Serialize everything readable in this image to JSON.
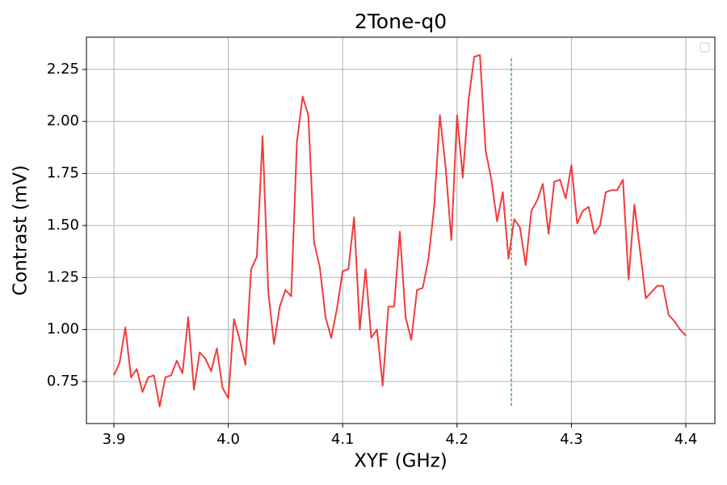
{
  "chart_data": {
    "type": "line",
    "title": "2Tone-q0",
    "xlabel": "XYF (GHz)",
    "ylabel": "Contrast (mV)",
    "x": [
      3.9,
      3.905,
      3.91,
      3.915,
      3.92,
      3.925,
      3.93,
      3.935,
      3.94,
      3.945,
      3.95,
      3.955,
      3.96,
      3.965,
      3.97,
      3.975,
      3.98,
      3.985,
      3.99,
      3.995,
      4.0,
      4.005,
      4.01,
      4.015,
      4.02,
      4.025,
      4.03,
      4.035,
      4.04,
      4.045,
      4.05,
      4.055,
      4.06,
      4.065,
      4.07,
      4.075,
      4.08,
      4.085,
      4.09,
      4.095,
      4.1,
      4.105,
      4.11,
      4.115,
      4.12,
      4.125,
      4.13,
      4.135,
      4.14,
      4.145,
      4.15,
      4.155,
      4.16,
      4.165,
      4.17,
      4.175,
      4.18,
      4.185,
      4.19,
      4.195,
      4.2,
      4.205,
      4.21,
      4.215,
      4.22,
      4.225,
      4.23,
      4.235,
      4.24,
      4.245,
      4.25,
      4.255,
      4.26,
      4.265,
      4.27,
      4.275,
      4.28,
      4.285,
      4.29,
      4.295,
      4.3,
      4.305,
      4.31,
      4.315,
      4.32,
      4.325,
      4.33,
      4.335,
      4.34,
      4.345,
      4.35,
      4.355,
      4.36,
      4.365,
      4.37,
      4.375,
      4.38,
      4.385,
      4.39,
      4.395,
      4.4
    ],
    "values": [
      0.78,
      0.84,
      1.01,
      0.77,
      0.81,
      0.7,
      0.77,
      0.78,
      0.63,
      0.77,
      0.78,
      0.85,
      0.79,
      1.06,
      0.71,
      0.89,
      0.86,
      0.8,
      0.91,
      0.72,
      0.67,
      1.05,
      0.95,
      0.83,
      1.29,
      1.35,
      1.93,
      1.18,
      0.93,
      1.11,
      1.19,
      1.16,
      1.9,
      2.12,
      2.03,
      1.42,
      1.3,
      1.06,
      0.96,
      1.1,
      1.28,
      1.29,
      1.54,
      1.0,
      1.29,
      0.96,
      1.0,
      0.73,
      1.11,
      1.11,
      1.47,
      1.06,
      0.95,
      1.19,
      1.2,
      1.34,
      1.59,
      2.03,
      1.78,
      1.43,
      2.03,
      1.73,
      2.1,
      2.31,
      2.32,
      1.86,
      1.72,
      1.52,
      1.66,
      1.34,
      1.53,
      1.49,
      1.31,
      1.57,
      1.62,
      1.7,
      1.46,
      1.71,
      1.72,
      1.63,
      1.79,
      1.51,
      1.57,
      1.59,
      1.46,
      1.5,
      1.66,
      1.67,
      1.67,
      1.72,
      1.24,
      1.6,
      1.38,
      1.15,
      1.18,
      1.21,
      1.21,
      1.07,
      1.04,
      1.0,
      0.97
    ],
    "color": "#f03c3c",
    "vlines": [
      {
        "x": 4.2475,
        "ymin": 0.633,
        "ymax": 2.312,
        "color": "#2ca02c"
      }
    ],
    "xlim": [
      3.876,
      4.4254
    ],
    "xticks": [
      3.9,
      {
        "value": 4,
        "label": "4.0"
      },
      4.1,
      4.2,
      4.3,
      4.4
    ],
    "ylim": [
      0.548,
      2.405
    ],
    "yticks": [
      0.75,
      {
        "value": 1,
        "label": "1.00"
      },
      1.25,
      {
        "value": 1.5,
        "label": "1.50"
      },
      1.75,
      {
        "value": 2,
        "label": "2.00"
      },
      2.25
    ],
    "grid": true
  }
}
